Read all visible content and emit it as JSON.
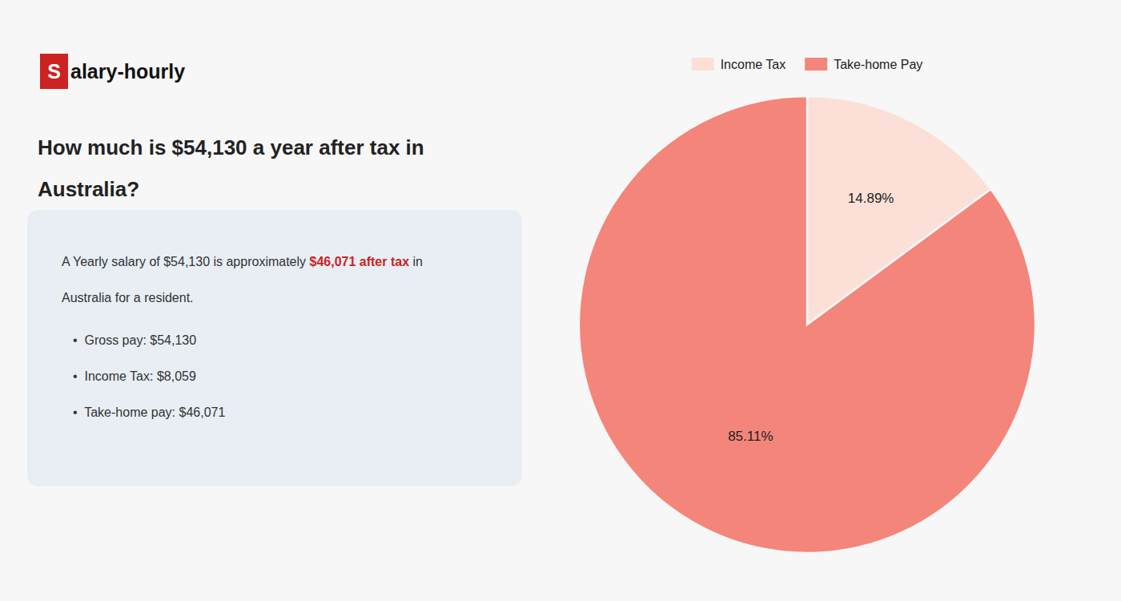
{
  "chart_data": {
    "type": "pie",
    "title": "How much is $54,130 a year after tax in Australia?",
    "annotations": [
      {
        "text": "S",
        "color": "#cc2222"
      },
      {
        "text": "alary-hourly"
      },
      {
        "text": "A Yearly salary of $54,130 is approximately "
      },
      {
        "text": "$46,071 after tax",
        "color": "#cc2222"
      },
      {
        "text": " in"
      },
      {
        "text": "Australia for a resident."
      },
      {
        "text": "•  Gross pay: $54,130"
      },
      {
        "text": "•  Income Tax: $8,059"
      },
      {
        "text": "•  Take-home pay: $46,071"
      }
    ],
    "categories": [
      "Income Tax",
      "Take-home Pay"
    ],
    "values": [
      14.89,
      85.11
    ],
    "value_labels": [
      "14.89%",
      "85.11%"
    ],
    "colors": [
      "#fce0d8",
      "#f4857a"
    ],
    "data_labels": true,
    "legend": "top"
  }
}
